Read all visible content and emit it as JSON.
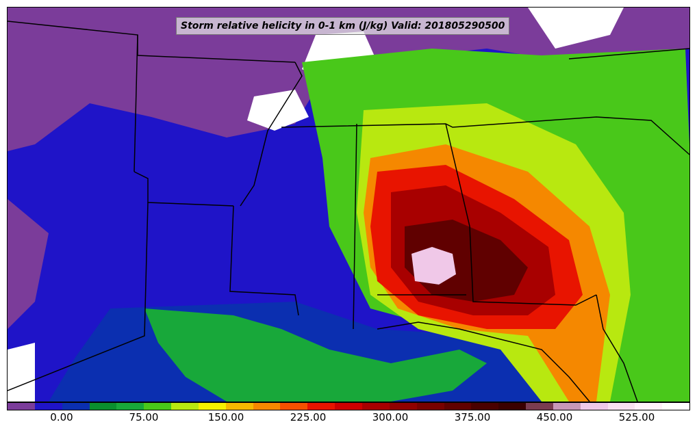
{
  "title": "Storm relative helicity in 0-1 km (J/kg) Valid: 201805290500",
  "legend": {
    "colors": [
      "#7b3c9a",
      "#1f14c8",
      "#0b2fb0",
      "#0a8f2e",
      "#18a83a",
      "#49c81a",
      "#b8e810",
      "#f5f000",
      "#f5b800",
      "#f58800",
      "#f55000",
      "#e81400",
      "#cc0000",
      "#a80000",
      "#900000",
      "#780000",
      "#600000",
      "#4a0000",
      "#3a0000",
      "#7a3c50",
      "#c898b8",
      "#f0c8e8",
      "#f8e0f0",
      "#fff0fa",
      "#ffffff"
    ],
    "ticks": [
      "0.00",
      "75.00",
      "150.00",
      "225.00",
      "300.00",
      "375.00",
      "450.00",
      "525.00"
    ]
  },
  "map": {
    "region": "Southeastern United States and Gulf of Mexico",
    "field": "0-1 km storm relative helicity",
    "units": "J/kg",
    "valid_time": "201805290500"
  }
}
